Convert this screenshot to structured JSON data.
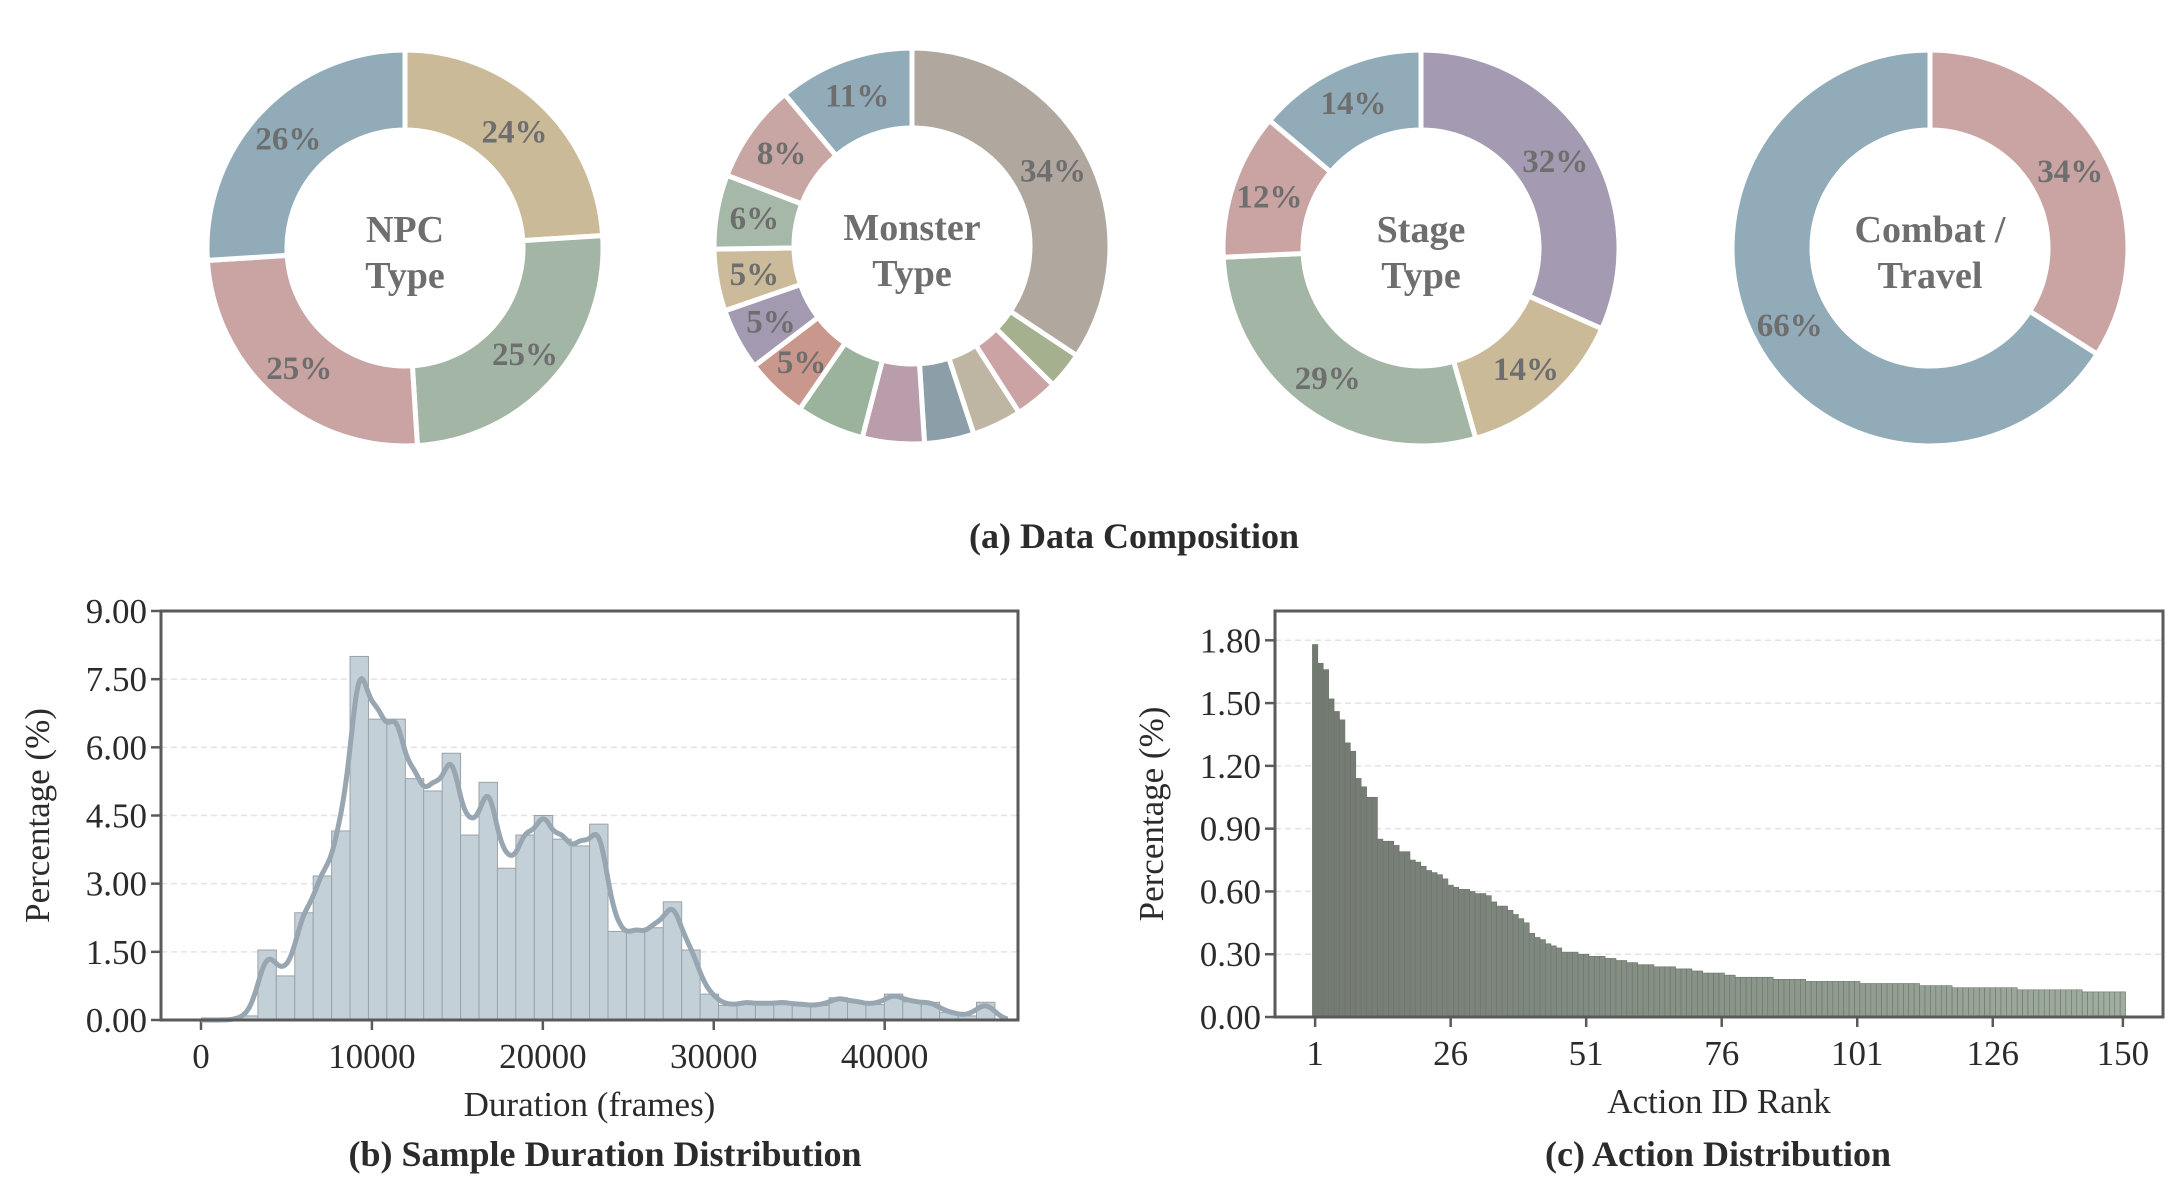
{
  "chart_data": [
    {
      "type": "pie",
      "style": "donut",
      "title": "NPC Type",
      "title_lines": [
        "NPC",
        "Type"
      ],
      "values": [
        24,
        25,
        25,
        26
      ],
      "labels": [
        "24%",
        "25%",
        "25%",
        "26%"
      ],
      "colors": [
        "#cbba98",
        "#a3b5a5",
        "#c9a4a3",
        "#91acb8"
      ]
    },
    {
      "type": "pie",
      "style": "donut",
      "title": "Monster Type",
      "title_lines": [
        "Monster",
        "Type"
      ],
      "values": [
        34,
        3,
        3.5,
        4,
        4,
        5,
        5.5,
        5,
        5,
        5,
        6,
        8,
        11
      ],
      "labels": [
        "34%",
        "",
        "",
        "",
        "",
        "",
        "",
        "5%",
        "5%",
        "5%",
        "6%",
        "8%",
        "11%"
      ],
      "colors": [
        "#b0a89e",
        "#a5b08f",
        "#cba3a4",
        "#beb6a2",
        "#8c9ea8",
        "#b99daa",
        "#9bb39c",
        "#c9978b",
        "#a39ab2",
        "#cbbb9b",
        "#a6b9a8",
        "#c8a6a4",
        "#91acb8"
      ]
    },
    {
      "type": "pie",
      "style": "donut",
      "title": "Stage Type",
      "title_lines": [
        "Stage",
        "Type"
      ],
      "values": [
        32,
        14,
        29,
        12,
        14
      ],
      "labels": [
        "32%",
        "14%",
        "29%",
        "12%",
        "14%"
      ],
      "colors": [
        "#a49ab2",
        "#cbba98",
        "#a3b5a5",
        "#c9a4a3",
        "#91acb8"
      ]
    },
    {
      "type": "pie",
      "style": "donut",
      "title": "Combat / Travel",
      "title_lines": [
        "Combat /",
        "Travel"
      ],
      "values": [
        34,
        66
      ],
      "labels": [
        "34%",
        "66%"
      ],
      "colors": [
        "#c9a4a3",
        "#91acb8"
      ]
    },
    {
      "type": "bar",
      "subtype": "histogram-with-kde",
      "xlabel": "Duration (frames)",
      "ylabel": "Percentage (%)",
      "xlim": [
        -2340,
        47800
      ],
      "ylim": [
        0,
        9
      ],
      "xticks": [
        "0",
        "10000",
        "20000",
        "30000",
        "40000"
      ],
      "xtick_values": [
        0,
        10000,
        20000,
        30000,
        40000
      ],
      "yticks": [
        "0.00",
        "1.50",
        "3.00",
        "4.50",
        "6.00",
        "7.50",
        "9.00"
      ],
      "ytick_values": [
        0,
        1.5,
        3,
        4.5,
        6,
        7.5,
        9
      ],
      "grid": "horizontal-dashed",
      "bin_start": 2252,
      "bin_width": 1078,
      "values": [
        0.09,
        1.54,
        0.97,
        2.36,
        3.17,
        4.16,
        8.0,
        6.62,
        6.62,
        5.31,
        5.04,
        5.87,
        4.07,
        5.23,
        3.34,
        4.07,
        4.5,
        3.98,
        3.83,
        4.31,
        1.95,
        1.95,
        2.03,
        2.6,
        1.54,
        0.57,
        0.32,
        0.39,
        0.36,
        0.39,
        0.34,
        0.32,
        0.49,
        0.4,
        0.34,
        0.57,
        0.4,
        0.39,
        0.17,
        0.09,
        0.39
      ],
      "bar_color": "#c4d0d8",
      "kde_color": "#98a6b1"
    },
    {
      "type": "bar",
      "xlabel": "Action ID Rank",
      "ylabel": "Percentage (%)",
      "xlim": [
        -6.4,
        157.4
      ],
      "ylim": [
        0,
        1.94
      ],
      "xticks": [
        "1",
        "26",
        "51",
        "76",
        "101",
        "126",
        "150"
      ],
      "xtick_values": [
        1,
        26,
        51,
        76,
        101,
        126,
        150
      ],
      "yticks": [
        "0.00",
        "0.30",
        "0.60",
        "0.90",
        "1.20",
        "1.50",
        "1.80"
      ],
      "ytick_values": [
        0,
        0.3,
        0.6,
        0.9,
        1.2,
        1.5,
        1.8
      ],
      "grid": "horizontal-dashed",
      "color_start": "#737a72",
      "color_end": "#a0ae9f",
      "values": [
        1.78,
        1.69,
        1.66,
        1.52,
        1.46,
        1.42,
        1.31,
        1.27,
        1.14,
        1.1,
        1.05,
        1.05,
        0.85,
        0.84,
        0.84,
        0.82,
        0.79,
        0.79,
        0.75,
        0.74,
        0.72,
        0.7,
        0.69,
        0.68,
        0.66,
        0.63,
        0.62,
        0.61,
        0.61,
        0.6,
        0.59,
        0.59,
        0.58,
        0.55,
        0.53,
        0.53,
        0.51,
        0.49,
        0.47,
        0.45,
        0.4,
        0.38,
        0.37,
        0.35,
        0.34,
        0.33,
        0.31,
        0.31,
        0.31,
        0.3,
        0.3,
        0.29,
        0.29,
        0.29,
        0.28,
        0.28,
        0.27,
        0.27,
        0.26,
        0.26,
        0.25,
        0.25,
        0.25,
        0.24,
        0.24,
        0.24,
        0.24,
        0.23,
        0.23,
        0.23,
        0.22,
        0.22,
        0.21,
        0.21,
        0.21,
        0.21,
        0.2,
        0.2,
        0.19,
        0.19,
        0.19,
        0.19,
        0.19,
        0.19,
        0.19,
        0.18,
        0.18,
        0.18,
        0.18,
        0.18,
        0.18,
        0.17,
        0.17,
        0.17,
        0.17,
        0.17,
        0.17,
        0.17,
        0.17,
        0.17,
        0.17,
        0.16,
        0.16,
        0.16,
        0.16,
        0.16,
        0.16,
        0.16,
        0.16,
        0.16,
        0.16,
        0.16,
        0.15,
        0.15,
        0.15,
        0.15,
        0.15,
        0.15,
        0.14,
        0.14,
        0.14,
        0.14,
        0.14,
        0.14,
        0.14,
        0.14,
        0.14,
        0.14,
        0.14,
        0.14,
        0.13,
        0.13,
        0.13,
        0.13,
        0.13,
        0.13,
        0.13,
        0.13,
        0.13,
        0.13,
        0.13,
        0.13,
        0.12,
        0.12,
        0.12,
        0.12,
        0.12,
        0.12,
        0.12,
        0.12
      ]
    }
  ],
  "captions": {
    "a": "(a) Data Composition",
    "b": "(b) Sample Duration Distribution",
    "c": "(c) Action Distribution"
  },
  "colors": {
    "label_text": "#6e6e6e",
    "axis": "#5a5a5a"
  }
}
